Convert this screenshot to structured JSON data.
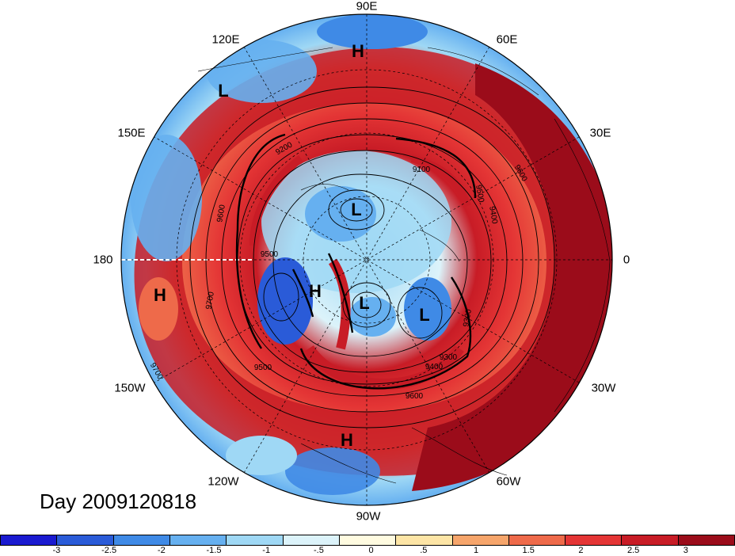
{
  "map": {
    "longitude_labels": [
      "90E",
      "60E",
      "30E",
      "0",
      "30W",
      "60W",
      "90W",
      "120W",
      "150W",
      "180",
      "150E",
      "120E"
    ],
    "pressure_markers": [
      "H",
      "L",
      "H",
      "L",
      "H",
      "L",
      "L",
      "H"
    ],
    "contour_labels": [
      "9600",
      "9500",
      "9400",
      "9300",
      "9200",
      "9100",
      "9500",
      "9600",
      "9700",
      "9400",
      "9300",
      "9500",
      "9600",
      "9700"
    ],
    "day_label": "Day 2009120818"
  },
  "colorbar": {
    "colors": [
      "#1a1ad0",
      "#2a5bd8",
      "#3f8ae6",
      "#66b0f0",
      "#9fd8f5",
      "#dcf3fa",
      "#fffbe0",
      "#fde5a6",
      "#f6a56b",
      "#ee6a4a",
      "#e43535",
      "#c81c26",
      "#9b0c1a"
    ],
    "tick_labels": [
      "-3",
      "-2.5",
      "-2",
      "-1.5",
      "-1",
      "-.5",
      "0",
      ".5",
      "1",
      "1.5",
      "2",
      "2.5",
      "3"
    ]
  }
}
